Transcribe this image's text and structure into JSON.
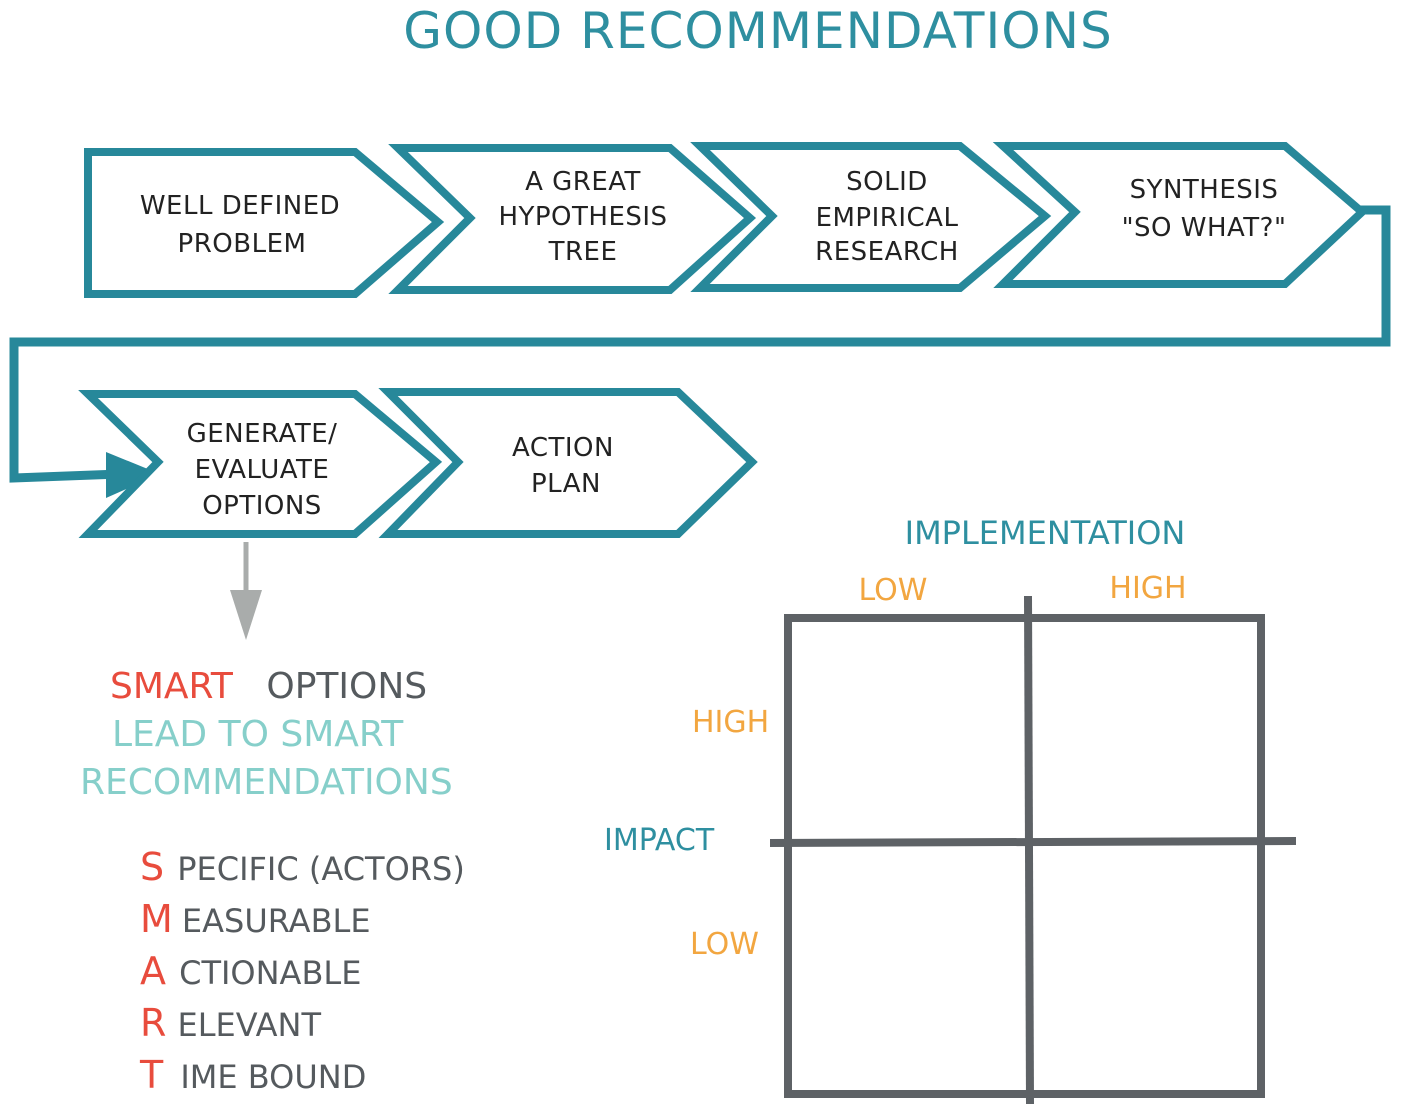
{
  "title": "GOOD RECOMMENDATIONS",
  "process_row1": [
    {
      "lines": [
        "WELL DEFINED",
        "PROBLEM"
      ]
    },
    {
      "lines": [
        "A GREAT",
        "HYPOTHESIS",
        "TREE"
      ]
    },
    {
      "lines": [
        "SOLID",
        "EMPIRICAL",
        "RESEARCH"
      ]
    },
    {
      "lines": [
        "SYNTHESIS",
        "\"SO WHAT?\""
      ]
    }
  ],
  "process_row2": [
    {
      "lines": [
        "GENERATE/",
        "EVALUATE",
        "OPTIONS"
      ]
    },
    {
      "lines": [
        "ACTION",
        "PLAN"
      ]
    }
  ],
  "smart_note": {
    "line1_red": "SMART",
    "line1_grey": "OPTIONS",
    "line2": "LEAD TO SMART",
    "line3": "RECOMMENDATIONS"
  },
  "smart_list": [
    {
      "letter": "S",
      "rest": "PECIFIC (ACTORS)"
    },
    {
      "letter": "M",
      "rest": "EASURABLE"
    },
    {
      "letter": "A",
      "rest": "CTIONABLE"
    },
    {
      "letter": "R",
      "rest": "ELEVANT"
    },
    {
      "letter": "T",
      "rest": "IME BOUND"
    }
  ],
  "matrix": {
    "x_axis_title": "IMPLEMENTATION",
    "x_low": "LOW",
    "x_high": "HIGH",
    "y_axis_title": "IMPACT",
    "y_high": "HIGH",
    "y_low": "LOW"
  },
  "colors": {
    "teal": "#27889a",
    "light_teal": "#86cfca",
    "red": "#e84c3d",
    "orange": "#f2a640",
    "grey": "#5e6266"
  }
}
